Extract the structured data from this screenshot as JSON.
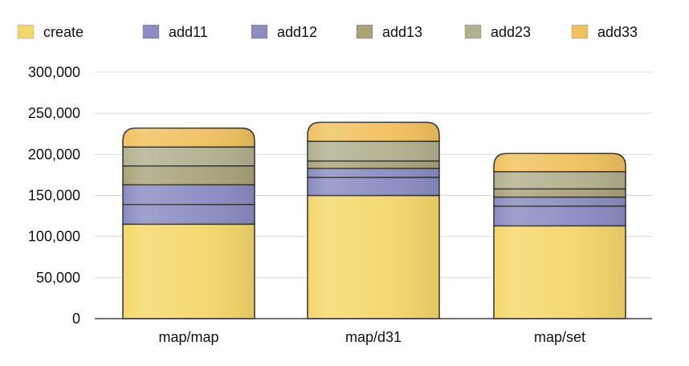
{
  "chart_data": {
    "type": "bar",
    "stacked": true,
    "categories": [
      "map/map",
      "map/d31",
      "map/set"
    ],
    "series": [
      {
        "name": "create",
        "values": [
          115000,
          150000,
          113000
        ],
        "color": "#f4d76a"
      },
      {
        "name": "add11",
        "values": [
          24000,
          22000,
          24000
        ],
        "color": "#8a8cc2"
      },
      {
        "name": "add12",
        "values": [
          24000,
          11000,
          11000
        ],
        "color": "#8a8cc2"
      },
      {
        "name": "add13",
        "values": [
          23000,
          9000,
          10000
        ],
        "color": "#a9a37a"
      },
      {
        "name": "add23",
        "values": [
          23000,
          24000,
          21000
        ],
        "color": "#b2b08f"
      },
      {
        "name": "add33",
        "values": [
          23000,
          23000,
          22000
        ],
        "color": "#f0c15e"
      }
    ],
    "y_ticks": [
      "0",
      "50,000",
      "100,000",
      "150,000",
      "200,000",
      "250,000",
      "300,000"
    ],
    "ylim": [
      0,
      300000
    ],
    "grid": true,
    "legend_position": "top",
    "title": "",
    "xlabel": "",
    "ylabel": ""
  }
}
